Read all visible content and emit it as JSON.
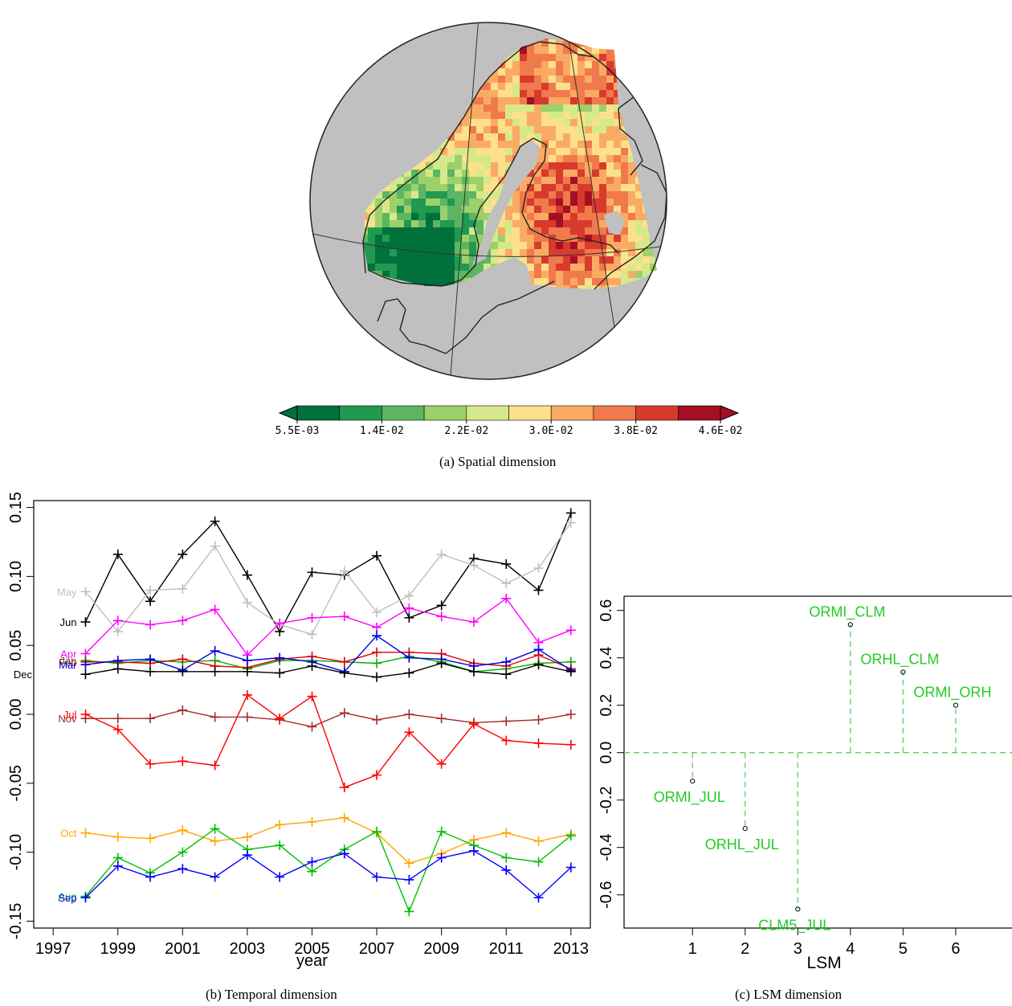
{
  "captions": {
    "a": "(a) Spatial dimension",
    "b": "(b) Temporal dimension",
    "c": "(c) LSM dimension"
  },
  "chart_data": [
    {
      "panel": "a",
      "type": "heatmap",
      "title": "",
      "colorbar": {
        "tick_labels": [
          "5.5E-03",
          "1.4E-02",
          "2.2E-02",
          "3.0E-02",
          "3.8E-02",
          "4.6E-02"
        ],
        "colors": [
          "#00703c",
          "#1f9a4f",
          "#5db562",
          "#9cd06a",
          "#d6e98a",
          "#fde08b",
          "#fbaa64",
          "#f07a4b",
          "#d73b2d",
          "#a50f23"
        ],
        "extend_low_color": "#00703c",
        "extend_high_color": "#a50f23",
        "ocean_color": "#c0c0c0"
      }
    },
    {
      "panel": "b",
      "type": "line",
      "xlabel": "year",
      "ylabel": "",
      "x_ticks": [
        1997,
        1999,
        2001,
        2003,
        2005,
        2007,
        2009,
        2011,
        2013
      ],
      "y_ticks": [
        "-0.15",
        "-0.10",
        "-0.05",
        "0.00",
        "0.05",
        "0.10",
        "0.15"
      ],
      "xlim": [
        1997,
        2013
      ],
      "ylim": [
        -0.15,
        0.15
      ],
      "x": [
        1998,
        1999,
        2000,
        2001,
        2002,
        2003,
        2004,
        2005,
        2006,
        2007,
        2008,
        2009,
        2010,
        2011,
        2012,
        2013
      ],
      "series": [
        {
          "name": "Jun",
          "color": "#000000",
          "values": [
            0.067,
            0.116,
            0.082,
            0.116,
            0.14,
            0.101,
            0.06,
            0.103,
            0.101,
            0.115,
            0.07,
            0.079,
            0.113,
            0.109,
            0.09,
            0.146
          ]
        },
        {
          "name": "May",
          "color": "#bfbfbf",
          "values": [
            0.089,
            0.06,
            0.09,
            0.091,
            0.122,
            0.081,
            0.065,
            0.058,
            0.104,
            0.074,
            0.086,
            0.116,
            0.108,
            0.095,
            0.106,
            0.139
          ]
        },
        {
          "name": "Apr",
          "color": "#ff00ff",
          "values": [
            0.044,
            0.068,
            0.065,
            0.068,
            0.076,
            0.043,
            0.066,
            0.07,
            0.071,
            0.063,
            0.077,
            0.071,
            0.067,
            0.084,
            0.052,
            0.061
          ]
        },
        {
          "name": "Jan",
          "color": "#00b000",
          "values": [
            0.039,
            0.037,
            0.039,
            0.038,
            0.039,
            0.033,
            0.039,
            0.039,
            0.038,
            0.037,
            0.042,
            0.038,
            0.031,
            0.033,
            0.037,
            0.038
          ]
        },
        {
          "name": "Feb",
          "color": "#e00000",
          "values": [
            0.038,
            0.038,
            0.037,
            0.04,
            0.035,
            0.034,
            0.04,
            0.042,
            0.038,
            0.045,
            0.045,
            0.044,
            0.037,
            0.035,
            0.043,
            0.033
          ]
        },
        {
          "name": "Mar",
          "color": "#0000e0",
          "values": [
            0.036,
            0.039,
            0.04,
            0.032,
            0.046,
            0.039,
            0.041,
            0.038,
            0.031,
            0.057,
            0.041,
            0.04,
            0.035,
            0.038,
            0.047,
            0.032
          ]
        },
        {
          "name": "Dec",
          "color": "#000000",
          "values": [
            0.029,
            0.033,
            0.031,
            0.031,
            0.031,
            0.031,
            0.03,
            0.035,
            0.03,
            0.027,
            0.03,
            0.037,
            0.031,
            0.029,
            0.036,
            0.031
          ]
        },
        {
          "name": "Nov",
          "color": "#a52a2a",
          "values": [
            -0.003,
            -0.003,
            -0.003,
            0.003,
            -0.002,
            -0.002,
            -0.004,
            -0.009,
            0.001,
            -0.004,
            0.0,
            -0.003,
            -0.006,
            -0.005,
            -0.004,
            0.0
          ]
        },
        {
          "name": "Jul",
          "color": "#ff0000",
          "values": [
            0.0,
            -0.011,
            -0.036,
            -0.034,
            -0.037,
            0.014,
            -0.003,
            0.013,
            -0.053,
            -0.044,
            -0.013,
            -0.036,
            -0.007,
            -0.019,
            -0.021,
            -0.022
          ]
        },
        {
          "name": "Oct",
          "color": "#ffa500",
          "values": [
            -0.086,
            -0.089,
            -0.09,
            -0.084,
            -0.092,
            -0.089,
            -0.08,
            -0.078,
            -0.075,
            -0.086,
            -0.108,
            -0.101,
            -0.091,
            -0.086,
            -0.092,
            -0.087
          ]
        },
        {
          "name": "Aug",
          "color": "#00c000",
          "values": [
            -0.132,
            -0.104,
            -0.115,
            -0.1,
            -0.083,
            -0.098,
            -0.095,
            -0.114,
            -0.098,
            -0.085,
            -0.143,
            -0.085,
            -0.095,
            -0.104,
            -0.107,
            -0.088
          ]
        },
        {
          "name": "Sep",
          "color": "#0000ff",
          "values": [
            -0.133,
            -0.11,
            -0.118,
            -0.112,
            -0.118,
            -0.102,
            -0.118,
            -0.107,
            -0.101,
            -0.118,
            -0.12,
            -0.104,
            -0.099,
            -0.113,
            -0.133,
            -0.111
          ]
        }
      ]
    },
    {
      "panel": "c",
      "type": "scatter",
      "xlabel": "LSM",
      "ylabel": "",
      "x_ticks": [
        1,
        2,
        3,
        4,
        5,
        6
      ],
      "y_ticks": [
        "-0.6",
        "-0.4",
        "-0.2",
        "0.0",
        "0.2",
        "0.4",
        "0.6"
      ],
      "ylim": [
        -0.6,
        0.6
      ],
      "label_color": "#22cc22",
      "points": [
        {
          "x": 1,
          "y": -0.12,
          "label": "ORMI_JUL"
        },
        {
          "x": 2,
          "y": -0.32,
          "label": "ORHL_JUL"
        },
        {
          "x": 3,
          "y": -0.66,
          "label": "CLM5_JUL"
        },
        {
          "x": 4,
          "y": 0.54,
          "label": "ORMI_CLM"
        },
        {
          "x": 5,
          "y": 0.34,
          "label": "ORHL_CLM"
        },
        {
          "x": 6,
          "y": 0.2,
          "label": "ORMI_ORH"
        }
      ]
    }
  ]
}
